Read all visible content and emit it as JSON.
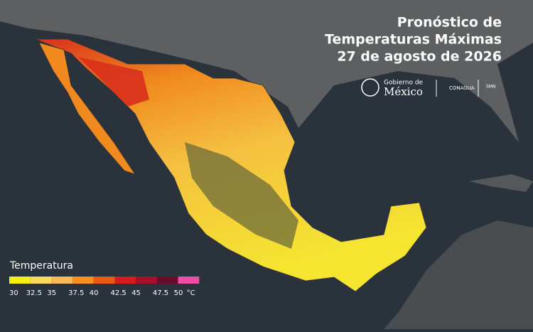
{
  "header": {
    "title_lines": [
      "Pronóstico de",
      "Temperaturas Máximas",
      "27 de agosto de 2026"
    ]
  },
  "logos": {
    "gobierno_small": "Gobierno de",
    "gobierno_big": "México",
    "conagua": "CONAGUA",
    "smn": "SMN"
  },
  "legend": {
    "title": "Temperatura",
    "unit": "°C",
    "ticks": [
      30,
      32.5,
      35,
      37.5,
      40,
      42.5,
      45,
      47.5,
      50
    ],
    "colors": [
      "#f7ef12",
      "#fdd85c",
      "#fbb85a",
      "#f7901f",
      "#eb5a15",
      "#d41c1a",
      "#a6102a",
      "#6b0c2c",
      "#ee4fa6"
    ]
  }
}
